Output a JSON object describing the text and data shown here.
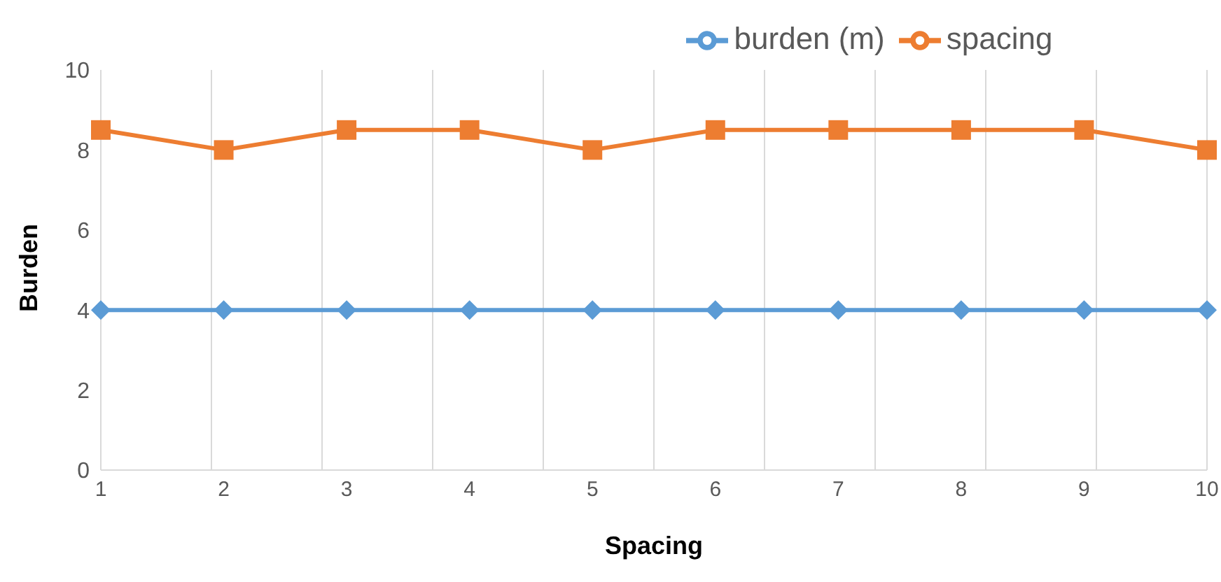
{
  "chart_data": {
    "type": "line",
    "xlabel": "Spacing",
    "ylabel": "Burden",
    "categories": [
      "1",
      "2",
      "3",
      "4",
      "5",
      "6",
      "7",
      "8",
      "9",
      "10"
    ],
    "series": [
      {
        "name": "burden (m)",
        "color": "#5b9bd5",
        "marker": "diamond",
        "values": [
          4,
          4,
          4,
          4,
          4,
          4,
          4,
          4,
          4,
          4
        ]
      },
      {
        "name": "spacing",
        "color": "#ed7d31",
        "marker": "square",
        "values": [
          8.5,
          8,
          8.5,
          8.5,
          8,
          8.5,
          8.5,
          8.5,
          8.5,
          8
        ]
      }
    ],
    "ylim": [
      0,
      10
    ],
    "yticks": [
      0,
      2,
      4,
      6,
      8,
      10
    ],
    "grid": "x",
    "legend": "top"
  }
}
